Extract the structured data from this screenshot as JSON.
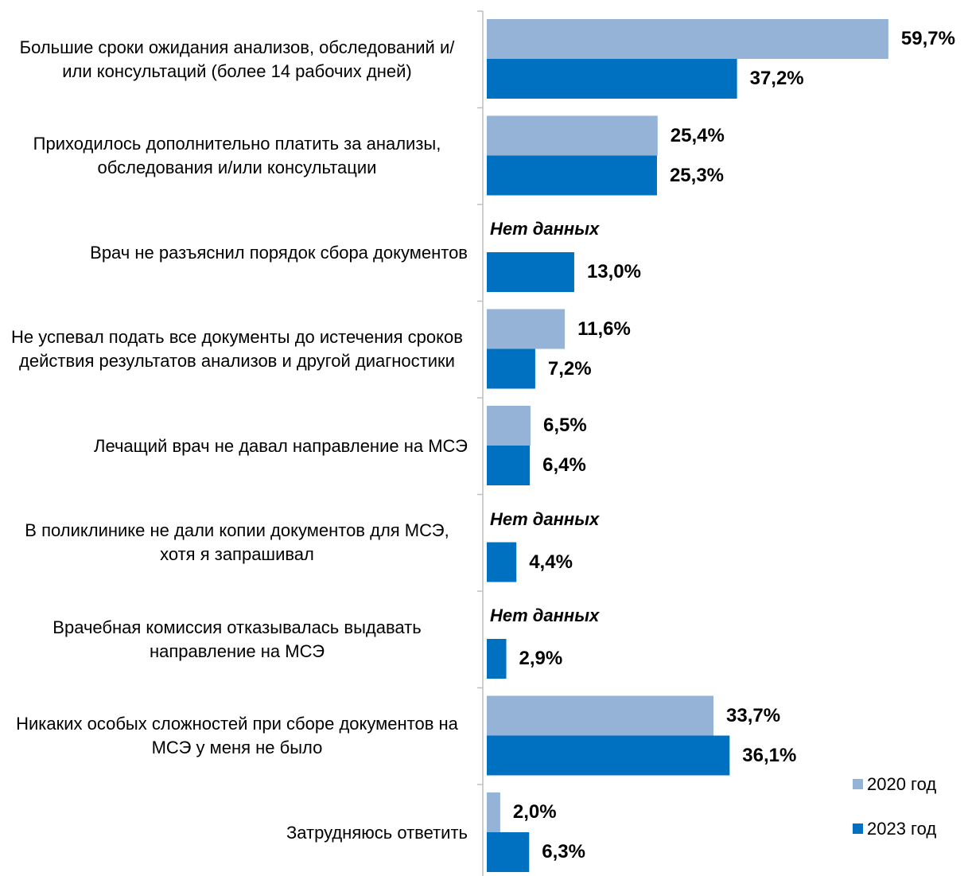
{
  "chart_data": {
    "type": "bar",
    "orientation": "horizontal",
    "categories": [
      "Большие сроки ожидания анализов, обследований и/или консультаций (более 14 рабочих дней)",
      "Приходилось дополнительно платить за анализы, обследования и/или консультации",
      "Врач не разъяснил порядок сбора документов",
      "Не успевал подать все документы до истечения сроков действия результатов анализов и другой диагностики",
      "Лечащий врач не давал направление на МСЭ",
      "В поликлинике не дали копии документов для МСЭ, хотя я запрашивал",
      "Врачебная комиссия отказывалась выдавать направление на МСЭ",
      "Никаких особых сложностей при сборе документов на МСЭ у меня не было",
      "Затрудняюсь ответить"
    ],
    "series": [
      {
        "name": "2020 год",
        "color": "#95b3d7",
        "values": [
          59.7,
          25.4,
          null,
          11.6,
          6.5,
          null,
          null,
          33.7,
          2.0
        ],
        "value_labels": [
          "59,7%",
          "25,4%",
          "Нет данных",
          "11,6%",
          "6,5%",
          "Нет данных",
          "Нет данных",
          "33,7%",
          "2,0%"
        ]
      },
      {
        "name": "2023 год",
        "color": "#0070c0",
        "values": [
          37.2,
          25.3,
          13.0,
          7.2,
          6.4,
          4.4,
          2.9,
          36.1,
          6.3
        ],
        "value_labels": [
          "37,2%",
          "25,3%",
          "13,0%",
          "7,2%",
          "6,4%",
          "4,4%",
          "2,9%",
          "36,1%",
          "6,3%"
        ]
      }
    ],
    "xlim": [
      0,
      70
    ],
    "legend": "bottom-right"
  }
}
